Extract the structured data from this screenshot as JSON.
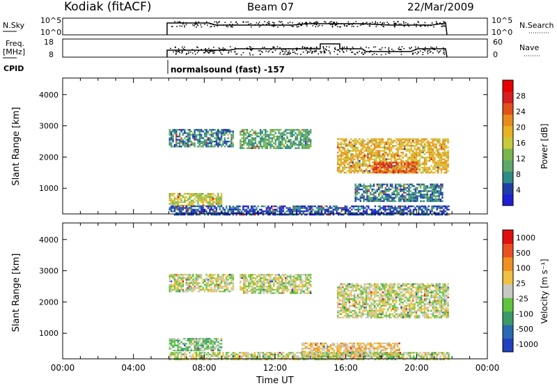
{
  "header": {
    "station": "Kodiak (fitACF)",
    "beam": "Beam 07",
    "date": "22/Mar/2009"
  },
  "top_panels": {
    "nsky": {
      "label": "N.Sky",
      "ticks": [
        "10^5",
        "10^0"
      ],
      "right_ticks": [
        "10^5",
        "10^0"
      ],
      "right_label": "N.Search"
    },
    "freq": {
      "label_line1": "Freq.",
      "label_line2": "[MHz]",
      "ticks": [
        "18",
        "8"
      ],
      "right_ticks": [
        "60",
        "0"
      ],
      "right_label": "Nave"
    },
    "cpid": {
      "label": "CPID",
      "text": "normalsound (fast) -157"
    }
  },
  "chart_data": [
    {
      "type": "heatmap",
      "name": "power",
      "ylabel": "Slant Range [km]",
      "yticks": [
        "4000",
        "3000",
        "2000",
        "1000"
      ],
      "ylim": [
        180,
        4530
      ],
      "xlim": [
        0,
        24
      ],
      "colorbar": {
        "label": "Power [dB]",
        "ticks": [
          "28",
          "24",
          "20",
          "16",
          "12",
          "8",
          "4"
        ],
        "colors": [
          "#1f1fd6",
          "#1f3ea8",
          "#2e8a84",
          "#5fa86a",
          "#7ab54e",
          "#c9c93c",
          "#e8b224",
          "#e88a1c",
          "#e0521a",
          "#d81e1e",
          "#e80000"
        ]
      },
      "regions": [
        {
          "x": [
            6.0,
            9.6
          ],
          "y": [
            2350,
            2900
          ],
          "level": 2
        },
        {
          "x": [
            10.0,
            14.0
          ],
          "y": [
            2300,
            2900
          ],
          "level": 3
        },
        {
          "x": [
            15.5,
            21.8
          ],
          "y": [
            1500,
            2600
          ],
          "level": 6
        },
        {
          "x": [
            17.5,
            20.0
          ],
          "y": [
            1500,
            1850
          ],
          "level": 8
        },
        {
          "x": [
            6.0,
            9.0
          ],
          "y": [
            450,
            850
          ],
          "level": 5
        },
        {
          "x": [
            6.0,
            21.8
          ],
          "y": [
            180,
            450
          ],
          "level": 1
        },
        {
          "x": [
            16.5,
            21.5
          ],
          "y": [
            600,
            1150
          ],
          "level": 2
        }
      ]
    },
    {
      "type": "heatmap",
      "name": "velocity",
      "ylabel": "Slant Range [km]",
      "yticks": [
        "4000",
        "3000",
        "2000",
        "1000"
      ],
      "ylim": [
        180,
        4530
      ],
      "xlim": [
        0,
        24
      ],
      "xticks": [
        "00:00",
        "04:00",
        "08:00",
        "12:00",
        "16:00",
        "20:00",
        "00:00"
      ],
      "xlabel": "Time UT",
      "colorbar": {
        "label": "Velocity [m s⁻¹]",
        "ticks": [
          "1000",
          "500",
          "100",
          "25",
          "-25",
          "-100",
          "-500",
          "-1000"
        ],
        "colors": [
          "#2040c0",
          "#2a6ab0",
          "#3a9a6a",
          "#62c43e",
          "#c8c8c4",
          "#f0c040",
          "#f09020",
          "#e85020",
          "#e01010"
        ]
      },
      "regions": [
        {
          "x": [
            6.0,
            9.6
          ],
          "y": [
            2350,
            2900
          ],
          "level": 4
        },
        {
          "x": [
            10.0,
            14.0
          ],
          "y": [
            2300,
            2900
          ],
          "level": 4
        },
        {
          "x": [
            15.5,
            21.8
          ],
          "y": [
            1500,
            2600
          ],
          "level": 4
        },
        {
          "x": [
            6.0,
            9.0
          ],
          "y": [
            450,
            850
          ],
          "level": 3
        },
        {
          "x": [
            13.5,
            19.0
          ],
          "y": [
            250,
            700
          ],
          "level": 5
        },
        {
          "x": [
            6.0,
            21.8
          ],
          "y": [
            180,
            400
          ],
          "level": 4
        }
      ]
    }
  ]
}
